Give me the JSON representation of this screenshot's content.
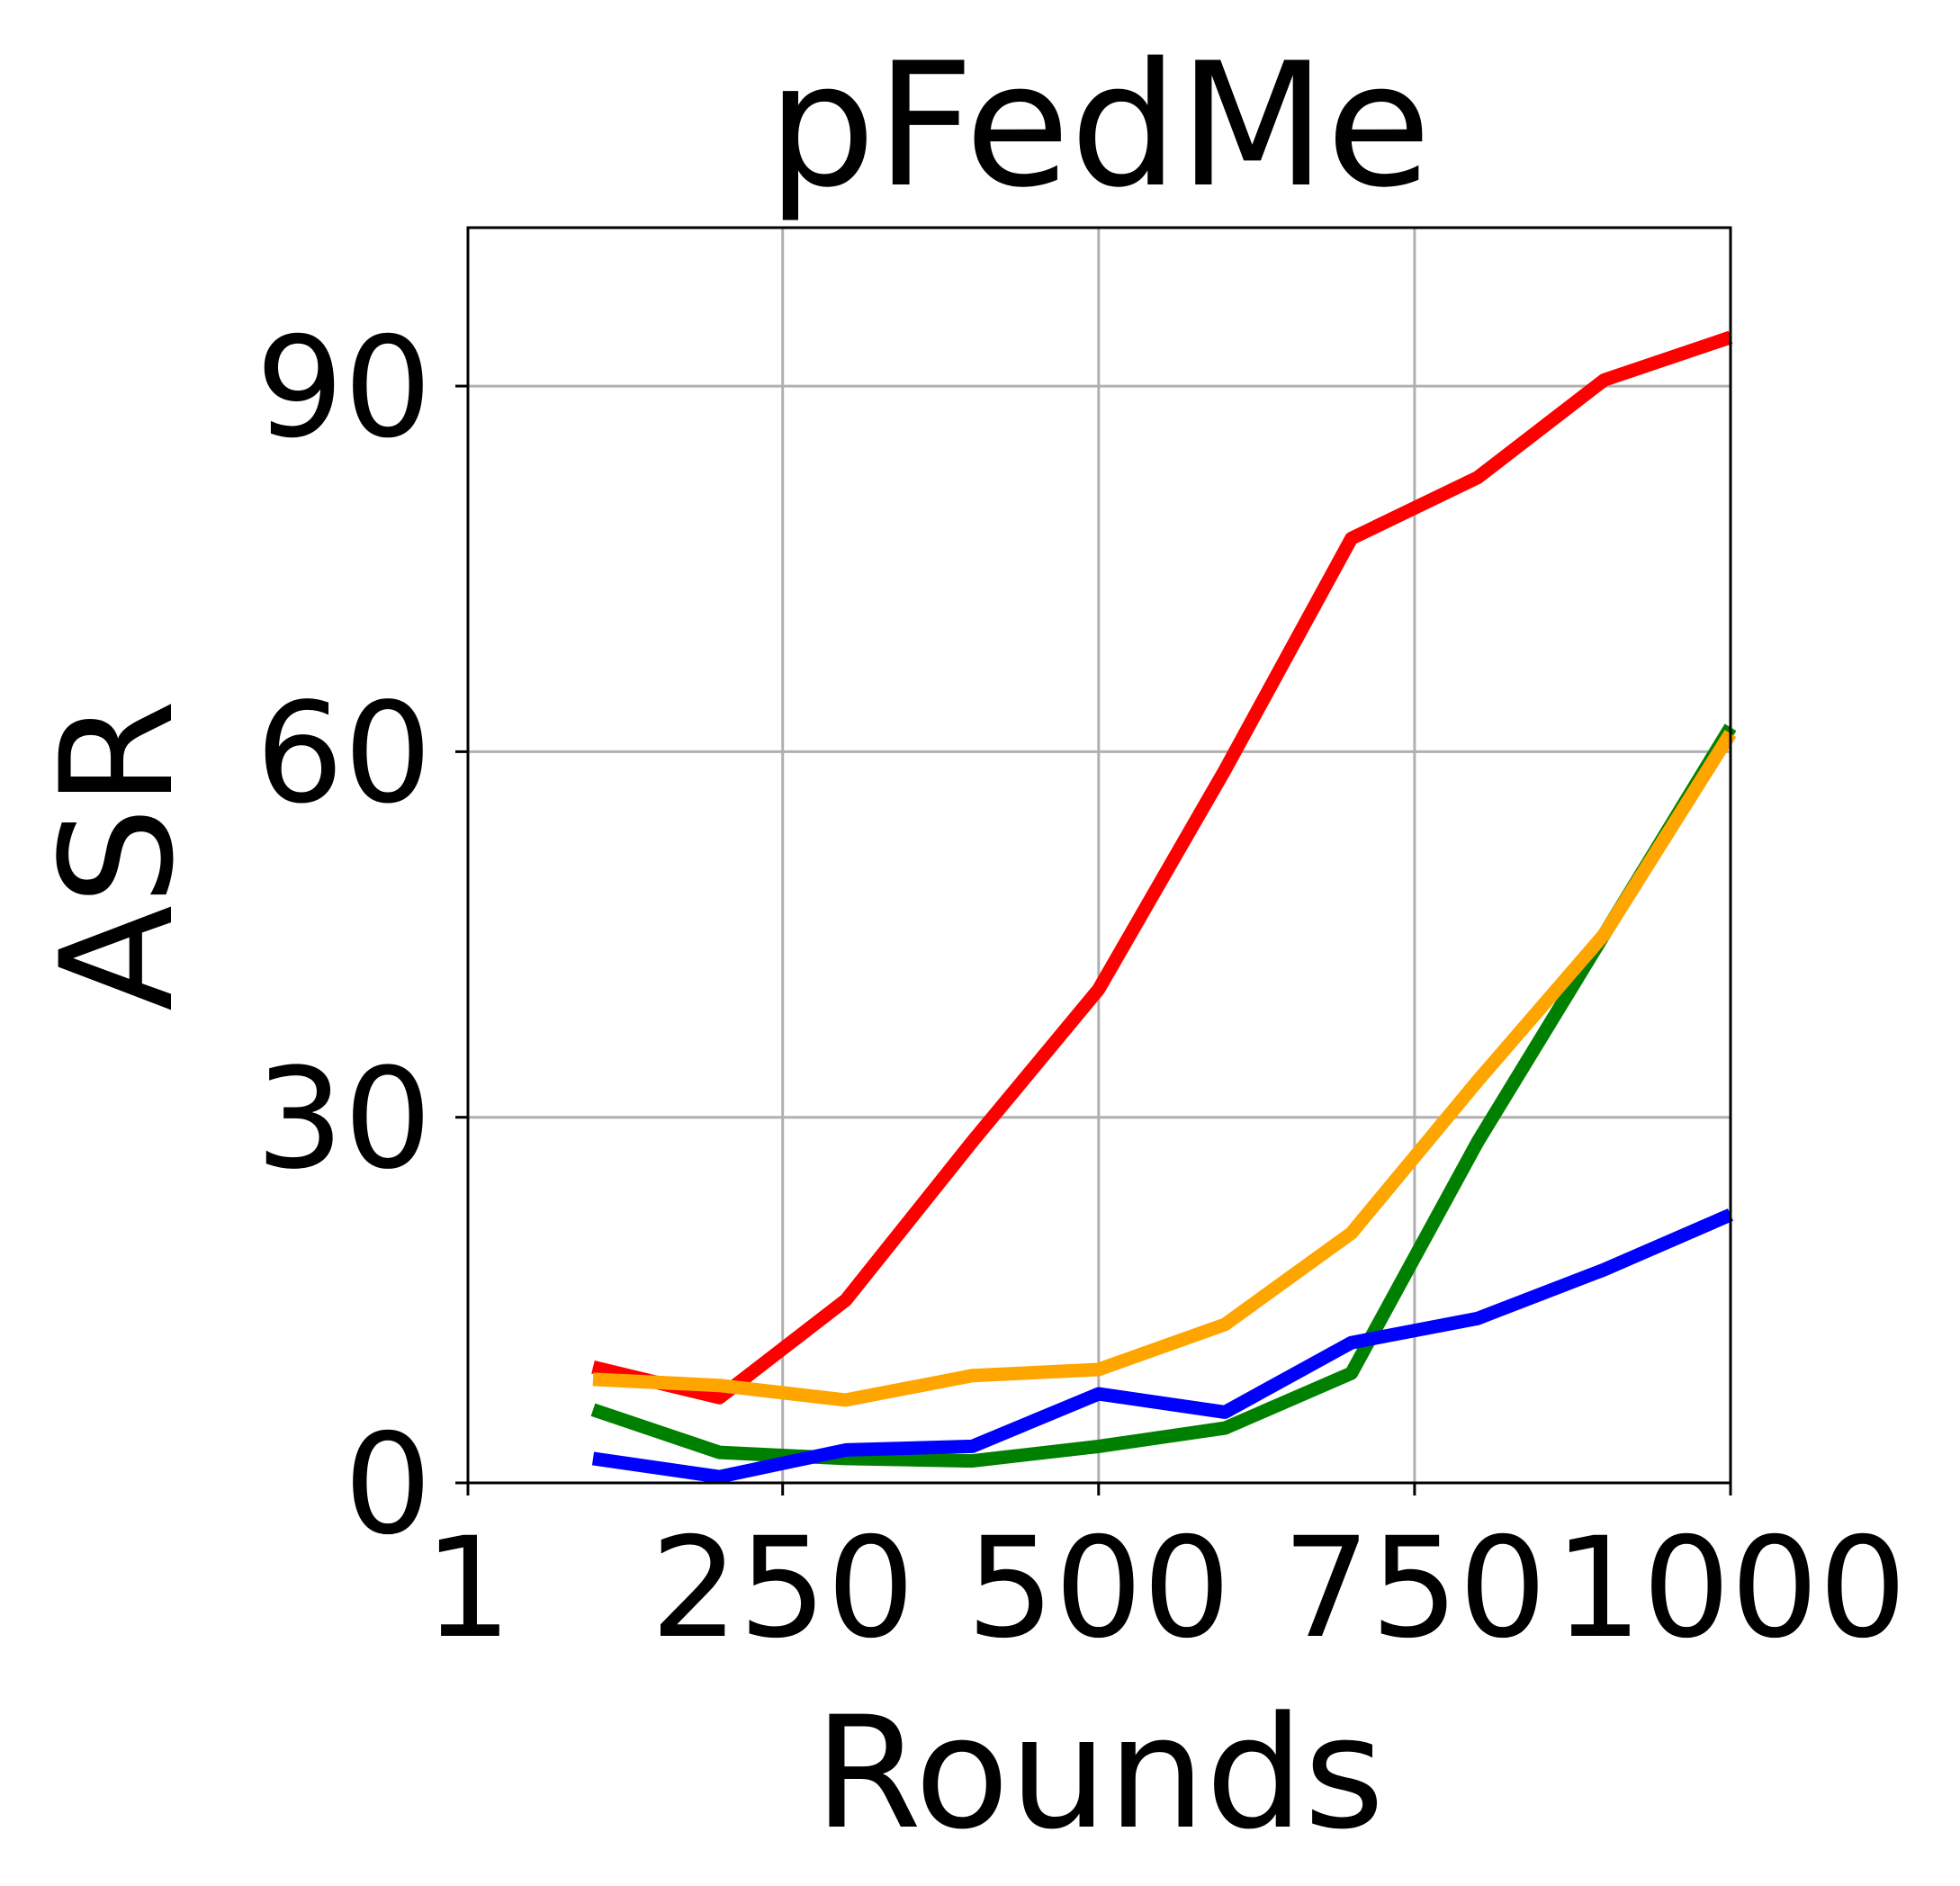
{
  "chart_data": {
    "type": "line",
    "title": "pFedMe",
    "xlabel": "Rounds",
    "ylabel": "ASR",
    "xlim": [
      1,
      1000
    ],
    "ylim": [
      0,
      103
    ],
    "xticks": [
      1,
      250,
      500,
      750,
      1000
    ],
    "xtick_labels": [
      "1",
      "250",
      "500",
      "750",
      "1000"
    ],
    "yticks": [
      0,
      30,
      60,
      90
    ],
    "ytick_labels": [
      "0",
      "30",
      "60",
      "90"
    ],
    "grid": true,
    "x": [
      100,
      200,
      300,
      400,
      500,
      600,
      700,
      800,
      900,
      1000
    ],
    "series": [
      {
        "color": "#ff0000",
        "values": [
          9.5,
          7.0,
          15.0,
          28.0,
          40.5,
          58.5,
          77.5,
          82.5,
          90.5,
          94.0
        ]
      },
      {
        "color": "#008000",
        "values": [
          6.0,
          2.5,
          2.0,
          1.8,
          3.0,
          4.5,
          9.0,
          28.0,
          45.0,
          62.0
        ]
      },
      {
        "color": "#ffa500",
        "values": [
          8.5,
          8.0,
          6.8,
          8.8,
          9.3,
          13.0,
          20.5,
          33.0,
          45.0,
          61.5
        ]
      },
      {
        "color": "#0000ff",
        "values": [
          2.0,
          0.5,
          2.7,
          3.0,
          7.3,
          5.8,
          11.5,
          13.5,
          17.5,
          22.0
        ]
      }
    ]
  }
}
